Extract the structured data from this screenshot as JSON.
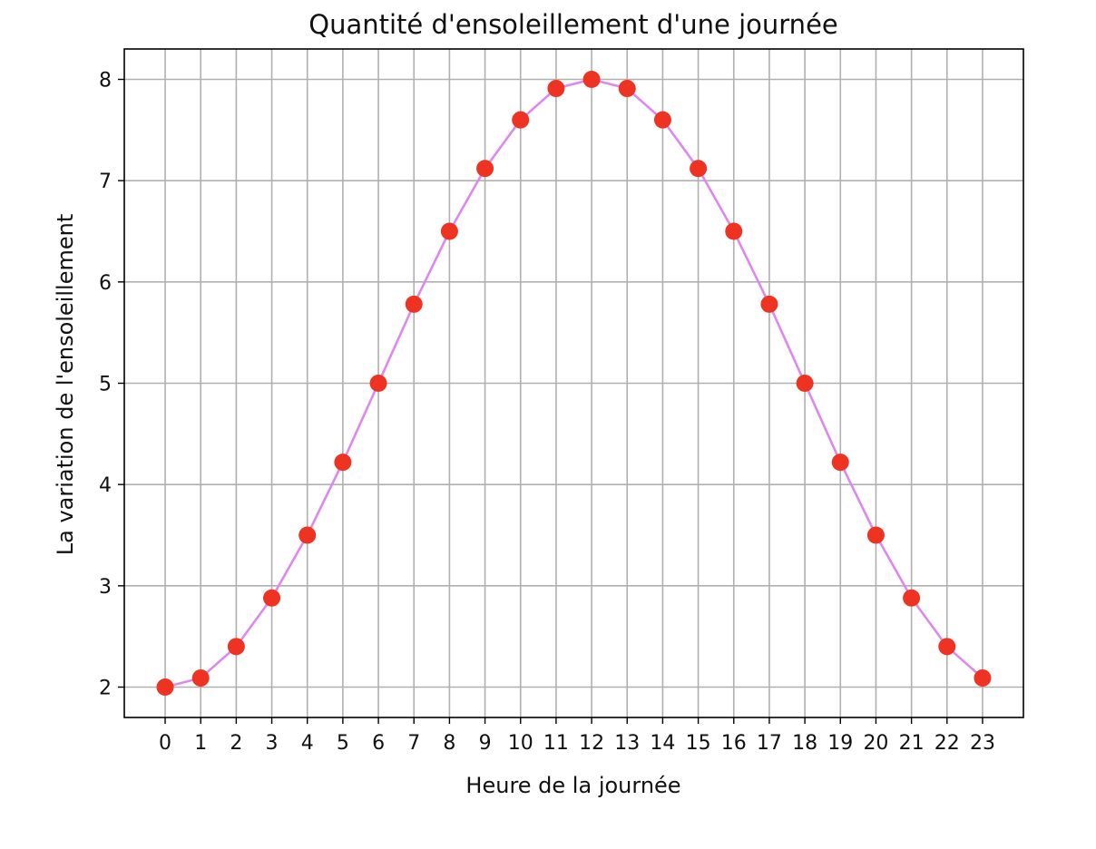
{
  "chart_data": {
    "type": "line",
    "title": "Quantité d'ensoleillement d'une journée",
    "xlabel": "Heure de la journée",
    "ylabel": "La variation de l'ensoleillement",
    "x": [
      0,
      1,
      2,
      3,
      4,
      5,
      6,
      7,
      8,
      9,
      10,
      11,
      12,
      13,
      14,
      15,
      16,
      17,
      18,
      19,
      20,
      21,
      22,
      23
    ],
    "series": [
      {
        "values": [
          2.0,
          2.09,
          2.4,
          2.88,
          3.5,
          4.22,
          5.0,
          5.78,
          6.5,
          7.12,
          7.6,
          7.91,
          8.0,
          7.91,
          7.6,
          7.12,
          6.5,
          5.78,
          5.0,
          4.22,
          3.5,
          2.88,
          2.4,
          2.09
        ],
        "line_color": "#dd88ee",
        "marker_color": "#ee3322"
      }
    ],
    "xticks": [
      0,
      1,
      2,
      3,
      4,
      5,
      6,
      7,
      8,
      9,
      10,
      11,
      12,
      13,
      14,
      15,
      16,
      17,
      18,
      19,
      20,
      21,
      22,
      23
    ],
    "yticks": [
      2,
      3,
      4,
      5,
      6,
      7,
      8
    ],
    "xlim": [
      -1.15,
      24.15
    ],
    "ylim": [
      1.7,
      8.3
    ],
    "grid": true,
    "grid_color": "#b0b0b0"
  }
}
